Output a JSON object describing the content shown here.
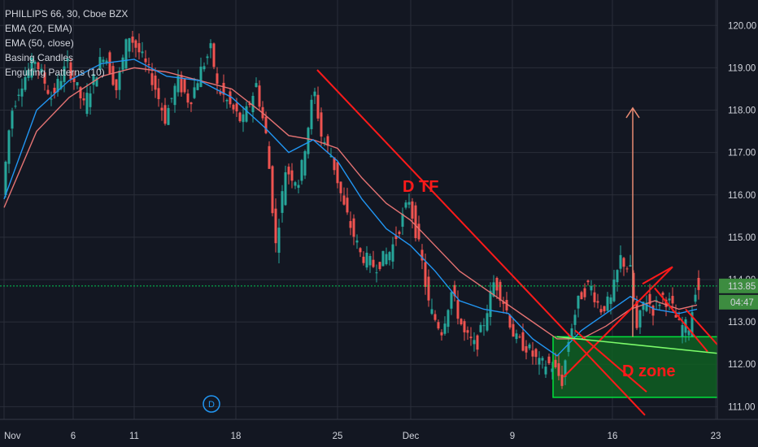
{
  "legend": {
    "symbol": "PHILLIPS 66, 30, Cboe BZX",
    "ema20": "EMA (20, EMA)",
    "ema50": "EMA (50, close)",
    "basing": "Basing Candles",
    "engulfing": "Engulfing Patterns (10)"
  },
  "badges": {
    "last_price": "113.85",
    "countdown": "04:47",
    "dividend": "D"
  },
  "colors": {
    "background": "#131722",
    "grid": "#2a2e39",
    "up": "#26a69a",
    "down": "#ef5350",
    "ema20": "#2196f3",
    "ema50": "#e57373",
    "annotation": "#ff1a1a",
    "zone_fill": "#0f5f22",
    "zone_border": "#00e33b",
    "last_price_line": "#00c853",
    "last_price_badge": "#3d8c40"
  },
  "chart_data": {
    "type": "candlestick",
    "ylim": [
      110.7,
      120.6
    ],
    "y_ticks": [
      "120.00",
      "119.00",
      "118.00",
      "117.00",
      "116.00",
      "115.00",
      "114.00",
      "113.00",
      "112.00",
      "111.00"
    ],
    "x_ticks": [
      "Nov",
      "6",
      "11",
      "18",
      "25",
      "Dec",
      "9",
      "16",
      "23"
    ],
    "x_tick_index": [
      0,
      85,
      160,
      285,
      410,
      500,
      625,
      748,
      875
    ],
    "last_price": 113.85,
    "price_path": [
      [
        0,
        116.0
      ],
      [
        10,
        117.9
      ],
      [
        22,
        118.6
      ],
      [
        40,
        119.2
      ],
      [
        60,
        118.3
      ],
      [
        80,
        119.1
      ],
      [
        100,
        118.1
      ],
      [
        125,
        119.4
      ],
      [
        140,
        118.5
      ],
      [
        155,
        119.8
      ],
      [
        170,
        119.3
      ],
      [
        185,
        118.7
      ],
      [
        200,
        117.8
      ],
      [
        215,
        118.7
      ],
      [
        230,
        118.2
      ],
      [
        245,
        119.0
      ],
      [
        258,
        119.5
      ],
      [
        262,
        118.6
      ],
      [
        280,
        118.1
      ],
      [
        295,
        117.7
      ],
      [
        312,
        118.6
      ],
      [
        325,
        117.3
      ],
      [
        336,
        114.8
      ],
      [
        348,
        116.6
      ],
      [
        365,
        116.3
      ],
      [
        383,
        118.5
      ],
      [
        392,
        117.4
      ],
      [
        405,
        116.9
      ],
      [
        420,
        115.7
      ],
      [
        440,
        114.6
      ],
      [
        458,
        114.3
      ],
      [
        478,
        114.7
      ],
      [
        500,
        115.9
      ],
      [
        515,
        114.5
      ],
      [
        525,
        113.3
      ],
      [
        540,
        112.8
      ],
      [
        552,
        113.7
      ],
      [
        568,
        112.7
      ],
      [
        582,
        112.4
      ],
      [
        592,
        113.0
      ],
      [
        605,
        114.0
      ],
      [
        618,
        113.4
      ],
      [
        630,
        112.6
      ],
      [
        645,
        112.4
      ],
      [
        660,
        112.0
      ],
      [
        675,
        112.0
      ],
      [
        688,
        111.6
      ],
      [
        698,
        112.8
      ],
      [
        710,
        113.6
      ],
      [
        722,
        113.9
      ],
      [
        735,
        113.3
      ],
      [
        748,
        113.5
      ],
      [
        760,
        114.5
      ],
      [
        772,
        114.2
      ],
      [
        780,
        112.8
      ],
      [
        790,
        113.6
      ],
      [
        800,
        113.3
      ],
      [
        812,
        113.6
      ],
      [
        822,
        113.4
      ],
      [
        832,
        112.9
      ],
      [
        845,
        112.9
      ],
      [
        852,
        113.8
      ]
    ],
    "ema20_path": [
      [
        0,
        115.9
      ],
      [
        40,
        118.0
      ],
      [
        80,
        118.7
      ],
      [
        120,
        119.1
      ],
      [
        160,
        119.2
      ],
      [
        200,
        118.8
      ],
      [
        240,
        118.7
      ],
      [
        280,
        118.3
      ],
      [
        320,
        117.6
      ],
      [
        350,
        117.0
      ],
      [
        380,
        117.3
      ],
      [
        410,
        116.8
      ],
      [
        440,
        115.9
      ],
      [
        470,
        115.2
      ],
      [
        500,
        114.8
      ],
      [
        530,
        114.2
      ],
      [
        560,
        113.5
      ],
      [
        590,
        113.3
      ],
      [
        620,
        113.2
      ],
      [
        650,
        112.6
      ],
      [
        680,
        112.2
      ],
      [
        710,
        112.8
      ],
      [
        740,
        113.2
      ],
      [
        770,
        113.6
      ],
      [
        800,
        113.3
      ],
      [
        830,
        113.2
      ],
      [
        852,
        113.3
      ]
    ],
    "ema50_path": [
      [
        0,
        115.7
      ],
      [
        40,
        117.5
      ],
      [
        80,
        118.3
      ],
      [
        120,
        118.8
      ],
      [
        160,
        119.0
      ],
      [
        200,
        118.9
      ],
      [
        240,
        118.7
      ],
      [
        280,
        118.5
      ],
      [
        320,
        117.9
      ],
      [
        350,
        117.4
      ],
      [
        380,
        117.3
      ],
      [
        410,
        117.1
      ],
      [
        440,
        116.4
      ],
      [
        470,
        115.8
      ],
      [
        500,
        115.4
      ],
      [
        530,
        114.8
      ],
      [
        560,
        114.2
      ],
      [
        590,
        113.8
      ],
      [
        620,
        113.4
      ],
      [
        650,
        113.0
      ],
      [
        680,
        112.6
      ],
      [
        710,
        112.6
      ],
      [
        740,
        112.9
      ],
      [
        770,
        113.3
      ],
      [
        800,
        113.5
      ],
      [
        830,
        113.3
      ],
      [
        852,
        113.4
      ]
    ],
    "annotations": {
      "d_tf_label": "D TF",
      "d_zone_label": "D zone",
      "trend_line": [
        [
          385,
          118.95
        ],
        [
          788,
          110.8
        ]
      ],
      "zone": {
        "x_from": 675,
        "x_to": 882,
        "y_top": 112.65,
        "y_bottom": 111.22
      },
      "zone_line": [
        [
          680,
          112.65
        ],
        [
          882,
          112.25
        ]
      ],
      "arrow_up": {
        "x": 773,
        "from": 112.65,
        "to": 118.05
      },
      "cross_lines": [
        [
          [
            688,
            111.7
          ],
          [
            822,
            114.3
          ]
        ],
        [
          [
            702,
            112.8
          ],
          [
            790,
            111.35
          ]
        ],
        [
          [
            785,
            113.9
          ],
          [
            822,
            114.3
          ]
        ],
        [
          [
            800,
            113.8
          ],
          [
            865,
            112.3
          ]
        ],
        [
          [
            838,
            113.3
          ],
          [
            880,
            112.4
          ]
        ]
      ]
    }
  }
}
